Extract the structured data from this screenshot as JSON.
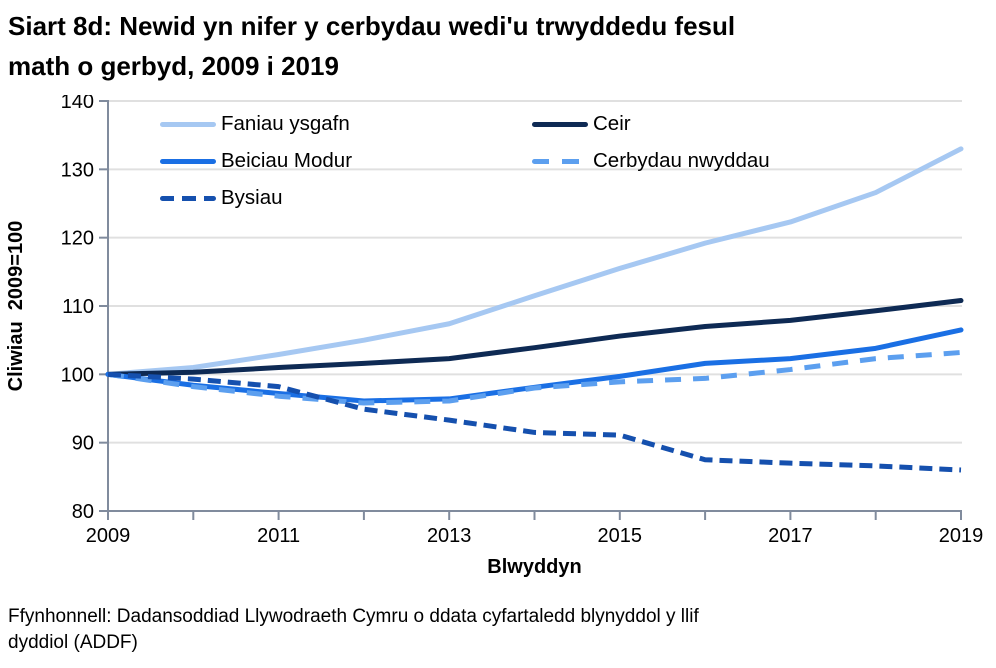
{
  "title": "Siart 8d: Newid yn nifer y cerbydau wedi'u trwyddedu fesul\nmath o gerbyd, 2009 i 2019",
  "source": "Ffynhonnell: Dadansoddiad Llywodraeth Cymru o ddata cyfartaledd blynyddol y llif\ndyddiol (ADDF)",
  "colors": {
    "axis": "#808B9D",
    "grid": "#E0E0E0",
    "text": "#000000",
    "background": "#FFFFFF"
  },
  "chart_data": {
    "type": "line",
    "title": "Siart 8d: Newid yn nifer y cerbydau wedi'u trwyddedu fesul math o gerbyd, 2009 i 2019",
    "xlabel": "Blwyddyn",
    "ylabel": "Cliwiau  2009=100",
    "x": [
      2009,
      2010,
      2011,
      2012,
      2013,
      2014,
      2015,
      2016,
      2017,
      2018,
      2019
    ],
    "x_tick_labels": [
      "2009",
      "2011",
      "2013",
      "2015",
      "2017",
      "2019"
    ],
    "ylim": [
      80,
      140
    ],
    "yticks": [
      80,
      90,
      100,
      110,
      120,
      130,
      140
    ],
    "grid": true,
    "legend_position": "top-inside-two-columns",
    "series": [
      {
        "name": "Faniau ysgafn",
        "color": "#A6C8F2",
        "line_style": "solid",
        "values": [
          100,
          101,
          102.9,
          105,
          107.4,
          111.5,
          115.5,
          119.2,
          122.3,
          126.6,
          133
        ]
      },
      {
        "name": "Ceir",
        "color": "#0E2A54",
        "line_style": "solid",
        "values": [
          100,
          100.3,
          101,
          101.6,
          102.3,
          103.9,
          105.6,
          107,
          107.9,
          109.3,
          110.8
        ]
      },
      {
        "name": "Beiciau Modur",
        "color": "#1A6FE4",
        "line_style": "solid",
        "values": [
          100,
          98.4,
          97.2,
          96.1,
          96.4,
          98.1,
          99.7,
          101.6,
          102.3,
          103.8,
          106.5
        ]
      },
      {
        "name": "Cerbydau nwyddau",
        "color": "#5C9FEF",
        "line_style": "dashed",
        "dash_pattern": "16 12",
        "values": [
          100,
          98.2,
          96.8,
          95.8,
          96.1,
          98,
          98.9,
          99.4,
          100.7,
          102.3,
          103.2
        ]
      },
      {
        "name": "Bysiau",
        "color": "#1550AE",
        "line_style": "dashed",
        "dash_pattern": "13 7",
        "values": [
          100,
          99.3,
          98.2,
          94.9,
          93.3,
          91.5,
          91.1,
          87.5,
          87,
          86.6,
          86
        ]
      }
    ]
  }
}
